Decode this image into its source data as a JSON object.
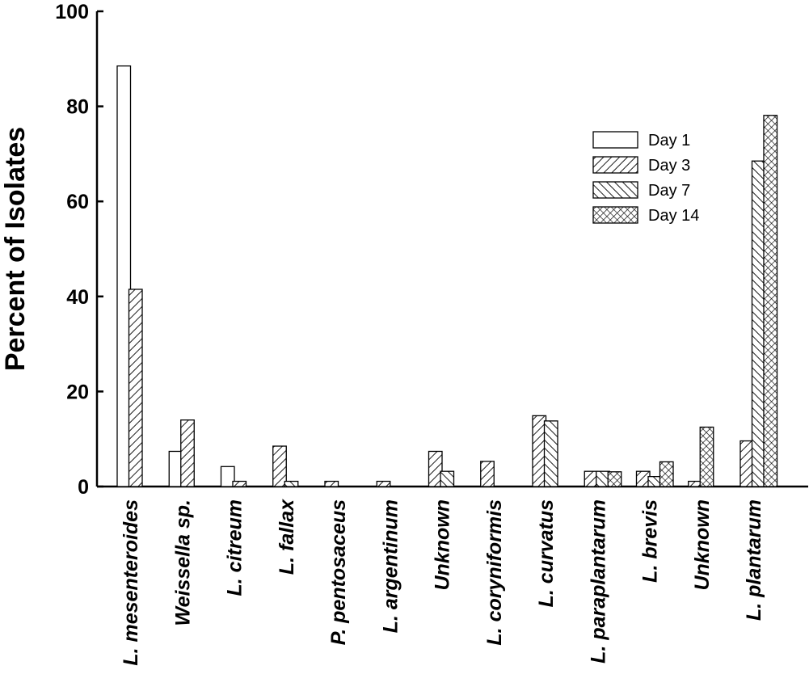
{
  "chart_data": {
    "type": "bar",
    "title": "",
    "xlabel": "",
    "ylabel": "Percent of Isolates",
    "ylim": [
      0,
      100
    ],
    "yticks": [
      0,
      20,
      40,
      60,
      80,
      100
    ],
    "grid": false,
    "legend_position": "top-right",
    "categories": [
      "L. mesenteroides",
      "Weissella sp.",
      "L. citreum",
      "L. fallax",
      "P. pentosaceus",
      "L. argentinum",
      "Unknown",
      "L. coryniformis",
      "L. curvatus",
      "L. paraplantarum",
      "L. brevis",
      "Unknown",
      "L. plantarum"
    ],
    "series": [
      {
        "name": "Day 1",
        "pattern": "none",
        "values": [
          88.5,
          7.4,
          4.2,
          0,
          0,
          0,
          0,
          0,
          0,
          0,
          0,
          0,
          0
        ]
      },
      {
        "name": "Day 3",
        "pattern": "diag-up",
        "values": [
          41.5,
          14,
          1.1,
          8.5,
          1.1,
          1.1,
          7.4,
          5.3,
          14.9,
          3.2,
          3.2,
          1.1,
          9.6
        ]
      },
      {
        "name": "Day 7",
        "pattern": "diag-down",
        "values": [
          0,
          0,
          0,
          1.1,
          0,
          0,
          3.2,
          0,
          13.8,
          3.2,
          2.1,
          0,
          68.5
        ]
      },
      {
        "name": "Day 14",
        "pattern": "cross-hatch",
        "values": [
          0,
          0,
          0,
          0,
          0,
          0,
          0,
          0,
          0,
          3.1,
          5.2,
          12.5,
          78.1
        ]
      }
    ]
  }
}
